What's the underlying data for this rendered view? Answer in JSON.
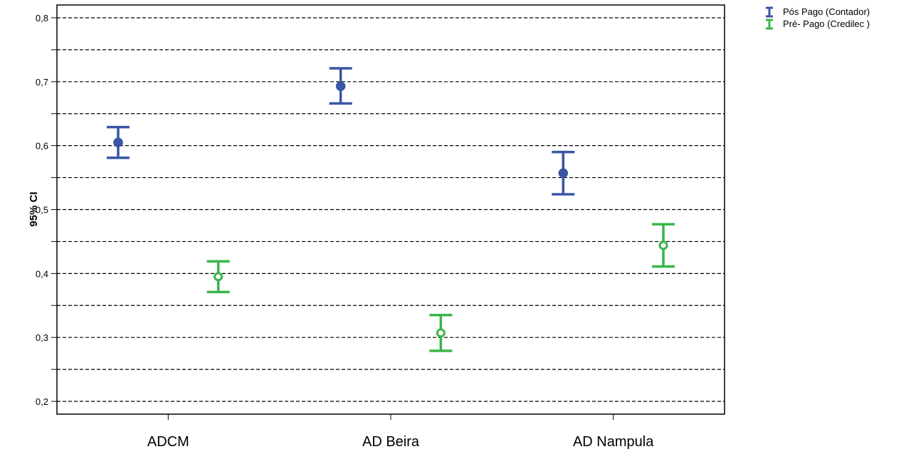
{
  "chart_data": {
    "type": "errorbar",
    "ylabel": "95% CI",
    "xlabel": "",
    "categories": [
      "ADCM",
      "AD Beira",
      "AD Nampula"
    ],
    "ylim": [
      0.18,
      0.82
    ],
    "yticks": [
      0.2,
      0.3,
      0.4,
      0.5,
      0.6,
      0.7,
      0.8
    ],
    "ytick_labels": [
      "0,2",
      "0,3",
      "0,4",
      "0,5",
      "0,6",
      "0,7",
      "0,8"
    ],
    "grid": true,
    "grid_lines": [
      0.2,
      0.25,
      0.3,
      0.35,
      0.4,
      0.45,
      0.5,
      0.55,
      0.6,
      0.65,
      0.7,
      0.75,
      0.8
    ],
    "legend_position": "top-right, outside plot",
    "series": [
      {
        "name": "Pós Pago (Contador)",
        "color": "#3a55a4",
        "marker": "filled-circle",
        "mean": [
          0.605,
          0.693,
          0.557
        ],
        "lower": [
          0.581,
          0.666,
          0.524
        ],
        "upper": [
          0.629,
          0.721,
          0.59
        ]
      },
      {
        "name": "Pré- Pago (Credilec )",
        "color": "#3ab54a",
        "marker": "hollow-circle",
        "mean": [
          0.395,
          0.307,
          0.444
        ],
        "lower": [
          0.371,
          0.279,
          0.411
        ],
        "upper": [
          0.419,
          0.335,
          0.477
        ]
      }
    ]
  }
}
